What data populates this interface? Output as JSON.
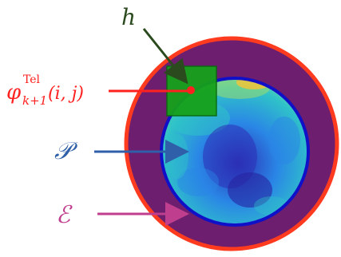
{
  "labels": {
    "h": "h",
    "phi_base": "φ",
    "phi_sup": "Tel",
    "phi_sub": "k+1",
    "phi_args": "(i, j)",
    "pupil": "𝒫",
    "annulus": "ℰ"
  },
  "colors": {
    "outer_ring": "#ff3b1f",
    "annulus_fill": "#6d1e6e",
    "pupil_border": "#1010c8",
    "pupil_deep": "#2c2fb6",
    "pupil_mid": "#2a86e6",
    "pupil_light": "#2fc2c9",
    "pupil_warm": "#f0c43a",
    "square_fill": "#16a11b",
    "square_stroke": "#0a6a0e",
    "h_color": "#2b4a1e",
    "phi_color": "#ff2020",
    "pupil_arrow": "#2e5fa8",
    "annulus_arrow": "#c03e8e"
  }
}
